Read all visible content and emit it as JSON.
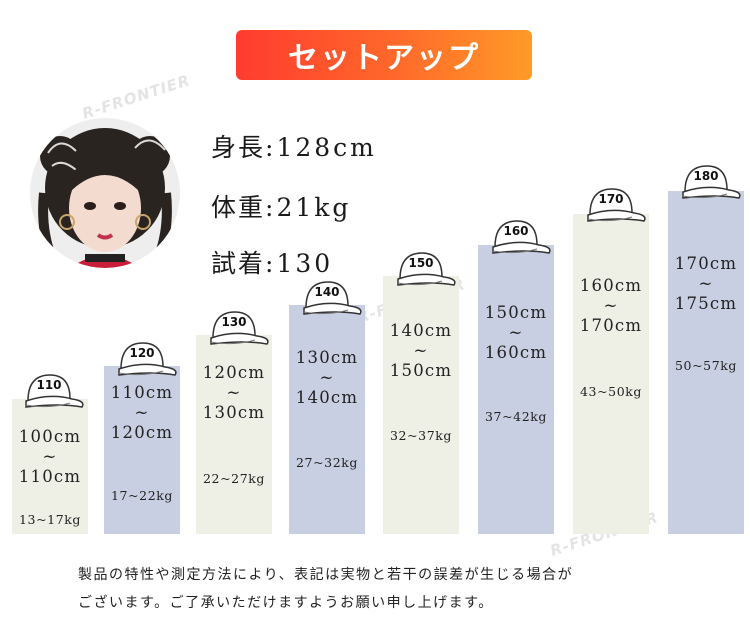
{
  "title": "セットアップ",
  "watermark": "R-FRONTIER",
  "model": {
    "height_label": "身長",
    "height_value": "128cm",
    "weight_label": "体重",
    "weight_value": "21kg",
    "fit_label": "試着",
    "fit_value": "130",
    "separator": ":"
  },
  "sizes": [
    {
      "size": "110",
      "range_low": "100cm",
      "tilde": "~",
      "range_high": "110cm",
      "weight": "13~17kg"
    },
    {
      "size": "120",
      "range_low": "110cm",
      "tilde": "~",
      "range_high": "120cm",
      "weight": "17~22kg"
    },
    {
      "size": "130",
      "range_low": "120cm",
      "tilde": "~",
      "range_high": "130cm",
      "weight": "22~27kg"
    },
    {
      "size": "140",
      "range_low": "130cm",
      "tilde": "~",
      "range_high": "140cm",
      "weight": "27~32kg"
    },
    {
      "size": "150",
      "range_low": "140cm",
      "tilde": "~",
      "range_high": "150cm",
      "weight": "32~37kg"
    },
    {
      "size": "160",
      "range_low": "150cm",
      "tilde": "~",
      "range_high": "160cm",
      "weight": "37~42kg"
    },
    {
      "size": "170",
      "range_low": "160cm",
      "tilde": "~",
      "range_high": "170cm",
      "weight": "43~50kg"
    },
    {
      "size": "180",
      "range_low": "170cm",
      "tilde": "~",
      "range_high": "175cm",
      "weight": "50~57kg"
    }
  ],
  "colors": {
    "bar_cream": "#eef0e6",
    "bar_blue": "#c9cfe2",
    "title_gradient_start": "#ff3b2f",
    "title_gradient_end": "#ff9a28"
  },
  "footnote": {
    "line1": "製品の特性や測定方法により、表記は実物と若干の誤差が生じる場合が",
    "line2": "ございます。ご了承いただけますようお願い申し上げます。"
  }
}
